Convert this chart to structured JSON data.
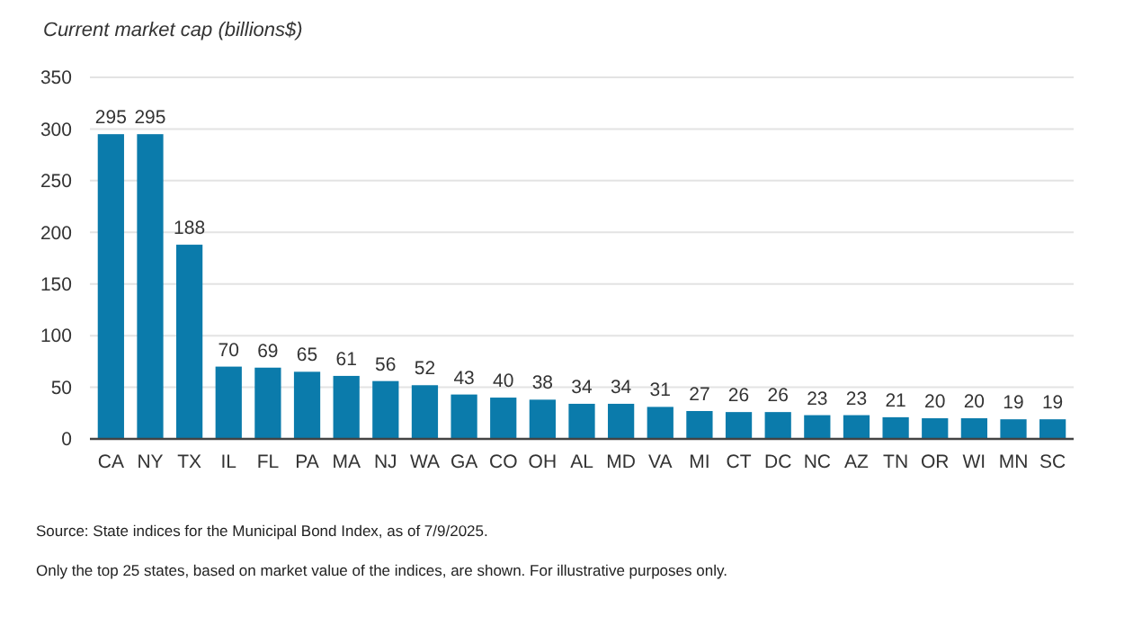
{
  "chart_data": {
    "type": "bar",
    "title": "Current market cap (billions$)",
    "categories": [
      "CA",
      "NY",
      "TX",
      "IL",
      "FL",
      "PA",
      "MA",
      "NJ",
      "WA",
      "GA",
      "CO",
      "OH",
      "AL",
      "MD",
      "VA",
      "MI",
      "CT",
      "DC",
      "NC",
      "AZ",
      "TN",
      "OR",
      "WI",
      "MN",
      "SC"
    ],
    "values": [
      295,
      295,
      188,
      70,
      69,
      65,
      61,
      56,
      52,
      43,
      40,
      38,
      34,
      34,
      31,
      27,
      26,
      26,
      23,
      23,
      21,
      20,
      20,
      19,
      19
    ],
    "color": "#0b7bab",
    "ylim": [
      0,
      350
    ],
    "yticks": [
      0,
      50,
      100,
      150,
      200,
      250,
      300,
      350
    ],
    "grid": "y",
    "data_labels": true,
    "annotations": [
      "Source: State indices for the Municipal Bond Index, as of 7/9/2025.",
      "Only the top 25 states, based on market value of the indices, are shown. For illustrative purposes only."
    ]
  }
}
